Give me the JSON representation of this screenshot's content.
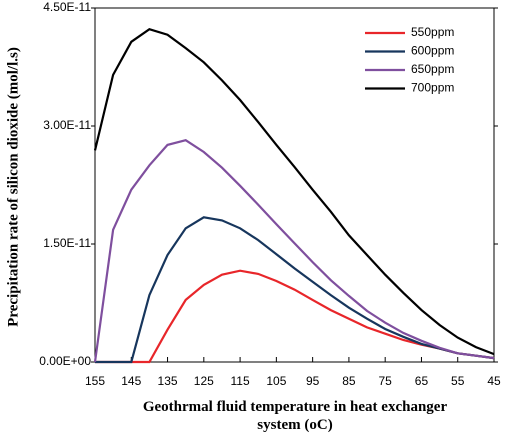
{
  "chart_data": {
    "type": "line",
    "x_label": "Geothrmal fluid temperature in heat exchanger system (oC)",
    "y_label": "Precipitation rate of silicon dioxide (mol/l.s)",
    "x": [
      155,
      150,
      145,
      140,
      135,
      130,
      125,
      120,
      115,
      110,
      105,
      100,
      95,
      90,
      85,
      80,
      75,
      70,
      65,
      60,
      55,
      50,
      45
    ],
    "series": [
      {
        "name": "550ppm",
        "color": "#e8262a",
        "values": [
          0,
          0,
          0,
          0,
          4.1e-12,
          7.9e-12,
          9.8e-12,
          1.11e-11,
          1.16e-11,
          1.12e-11,
          1.03e-11,
          9.2e-12,
          7.9e-12,
          6.6e-12,
          5.5e-12,
          4.4e-12,
          3.6e-12,
          2.8e-12,
          2.2e-12,
          1.7e-12,
          1.1e-12,
          8e-13,
          5e-13
        ]
      },
      {
        "name": "600ppm",
        "color": "#17365d",
        "values": [
          0,
          0,
          0,
          8.5e-12,
          1.36e-11,
          1.7e-11,
          1.84e-11,
          1.8e-11,
          1.7e-11,
          1.55e-11,
          1.37e-11,
          1.19e-11,
          1.02e-11,
          8.5e-12,
          6.9e-12,
          5.5e-12,
          4.2e-12,
          3.2e-12,
          2.3e-12,
          1.7e-12,
          1.1e-12,
          8e-13,
          5e-13
        ]
      },
      {
        "name": "650ppm",
        "color": "#7f4f9e",
        "values": [
          0,
          1.68e-11,
          2.19e-11,
          2.5e-11,
          2.76e-11,
          2.82e-11,
          2.67e-11,
          2.47e-11,
          2.24e-11,
          2e-11,
          1.75e-11,
          1.51e-11,
          1.27e-11,
          1.04e-11,
          8.4e-12,
          6.5e-12,
          5e-12,
          3.7e-12,
          2.7e-12,
          1.8e-12,
          1.1e-12,
          8e-13,
          5e-13
        ]
      },
      {
        "name": "700ppm",
        "color": "#000000",
        "values": [
          2.69e-11,
          3.65e-11,
          4.07e-11,
          4.23e-11,
          4.16e-11,
          3.99e-11,
          3.81e-11,
          3.58e-11,
          3.33e-11,
          3.05e-11,
          2.76e-11,
          2.48e-11,
          2.19e-11,
          1.91e-11,
          1.61e-11,
          1.36e-11,
          1.11e-11,
          8.8e-12,
          6.6e-12,
          4.7e-12,
          3.1e-12,
          1.9e-12,
          1e-12
        ]
      }
    ],
    "xlim": [
      155,
      45
    ],
    "xticks": [
      155,
      145,
      135,
      125,
      115,
      105,
      95,
      85,
      75,
      65,
      55,
      45
    ],
    "ylim": [
      0,
      4.5e-11
    ],
    "yticks": [
      {
        "value": 0,
        "label": "0.00E+00"
      },
      {
        "value": 1.5e-11,
        "label": "1.50E-11"
      },
      {
        "value": 3e-11,
        "label": "3.00E-11"
      },
      {
        "value": 4.5e-11,
        "label": "4.50E-11"
      }
    ],
    "legend": "upper right"
  }
}
